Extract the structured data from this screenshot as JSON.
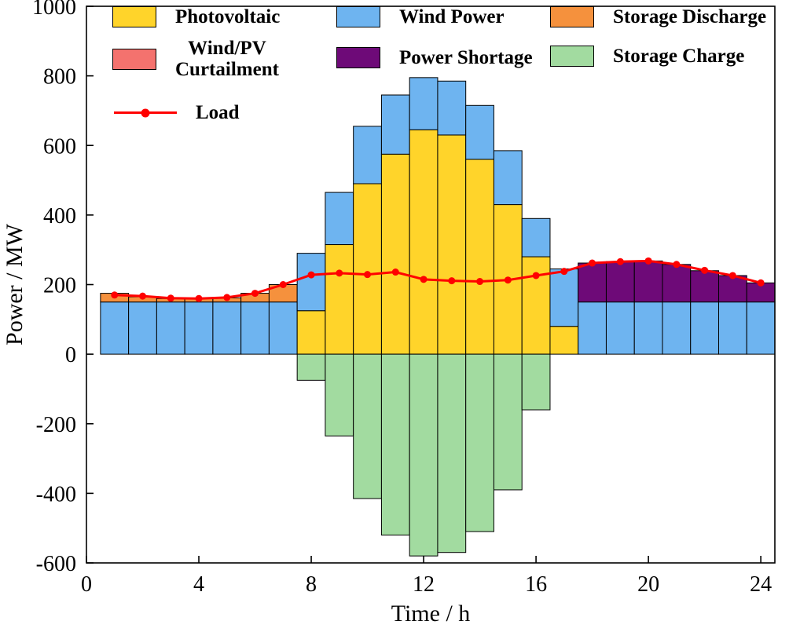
{
  "chart_data": {
    "type": "bar",
    "stacked": true,
    "title": "",
    "xlabel": "Time / h",
    "ylabel": "Power / MW",
    "xlim": [
      0,
      24.5
    ],
    "ylim": [
      -600,
      1000
    ],
    "xticks": [
      0,
      4,
      8,
      12,
      16,
      20,
      24
    ],
    "yticks": [
      -600,
      -400,
      -200,
      0,
      200,
      400,
      600,
      800,
      1000
    ],
    "grid": false,
    "legend_position": "inside-top-left",
    "hours": [
      1,
      2,
      3,
      4,
      5,
      6,
      7,
      8,
      9,
      10,
      11,
      12,
      13,
      14,
      15,
      16,
      17,
      18,
      19,
      20,
      21,
      22,
      23,
      24
    ],
    "bar_width": 1,
    "stack_order_positive": [
      "photovoltaic",
      "wind_power",
      "storage_discharge",
      "power_shortage",
      "wind_pv_curtailment"
    ],
    "stack_negative": "storage_charge",
    "series": [
      {
        "key": "photovoltaic",
        "name": "Photovoltaic",
        "color": "#FFD42A",
        "values": [
          0,
          0,
          0,
          0,
          0,
          0,
          0,
          125,
          315,
          490,
          575,
          645,
          630,
          560,
          430,
          280,
          80,
          0,
          0,
          0,
          0,
          0,
          0,
          0
        ]
      },
      {
        "key": "wind_power",
        "name": "Wind Power",
        "color": "#6EB4F0",
        "values": [
          150,
          150,
          150,
          150,
          150,
          150,
          150,
          165,
          150,
          165,
          170,
          150,
          155,
          155,
          155,
          110,
          165,
          150,
          150,
          150,
          150,
          150,
          150,
          150
        ]
      },
      {
        "key": "storage_discharge",
        "name": "Storage Discharge",
        "color": "#F5913D",
        "values": [
          25,
          15,
          10,
          10,
          12,
          25,
          50,
          0,
          0,
          0,
          0,
          0,
          0,
          0,
          0,
          0,
          0,
          0,
          0,
          0,
          0,
          0,
          0,
          0
        ]
      },
      {
        "key": "power_shortage",
        "name": "Power Shortage",
        "color": "#6E0A78",
        "values": [
          0,
          0,
          0,
          0,
          0,
          0,
          0,
          0,
          0,
          0,
          0,
          0,
          0,
          0,
          0,
          0,
          0,
          112,
          116,
          118,
          108,
          90,
          76,
          55
        ]
      },
      {
        "key": "wind_pv_curtailment",
        "name": "Wind/PV Curtailment",
        "color": "#F4726E",
        "values": [
          0,
          0,
          0,
          0,
          0,
          0,
          0,
          0,
          0,
          0,
          0,
          0,
          0,
          0,
          0,
          0,
          0,
          0,
          0,
          0,
          0,
          0,
          0,
          0
        ]
      },
      {
        "key": "storage_charge",
        "name": "Storage Charge",
        "color": "#A2DBA0",
        "values": [
          0,
          0,
          0,
          0,
          0,
          0,
          0,
          -75,
          -235,
          -415,
          -520,
          -580,
          -570,
          -510,
          -390,
          -160,
          0,
          0,
          0,
          0,
          0,
          0,
          0,
          0
        ]
      }
    ],
    "line_series": {
      "key": "load",
      "name": "Load",
      "color": "#FF0000",
      "values": [
        170,
        167,
        161,
        160,
        163,
        175,
        200,
        228,
        233,
        229,
        236,
        215,
        211,
        209,
        213,
        226,
        238,
        262,
        266,
        268,
        258,
        241,
        226,
        205
      ]
    }
  },
  "legend": {
    "photovoltaic": "Photovoltaic",
    "wind_power": "Wind Power",
    "storage_discharge": "Storage Discharge",
    "curtailment_line1": "Wind/PV",
    "curtailment_line2": "Curtailment",
    "power_shortage": "Power Shortage",
    "storage_charge": "Storage Charge",
    "load": "Load"
  },
  "axes": {
    "xlabel": "Time / h",
    "ylabel": "Power / MW"
  }
}
